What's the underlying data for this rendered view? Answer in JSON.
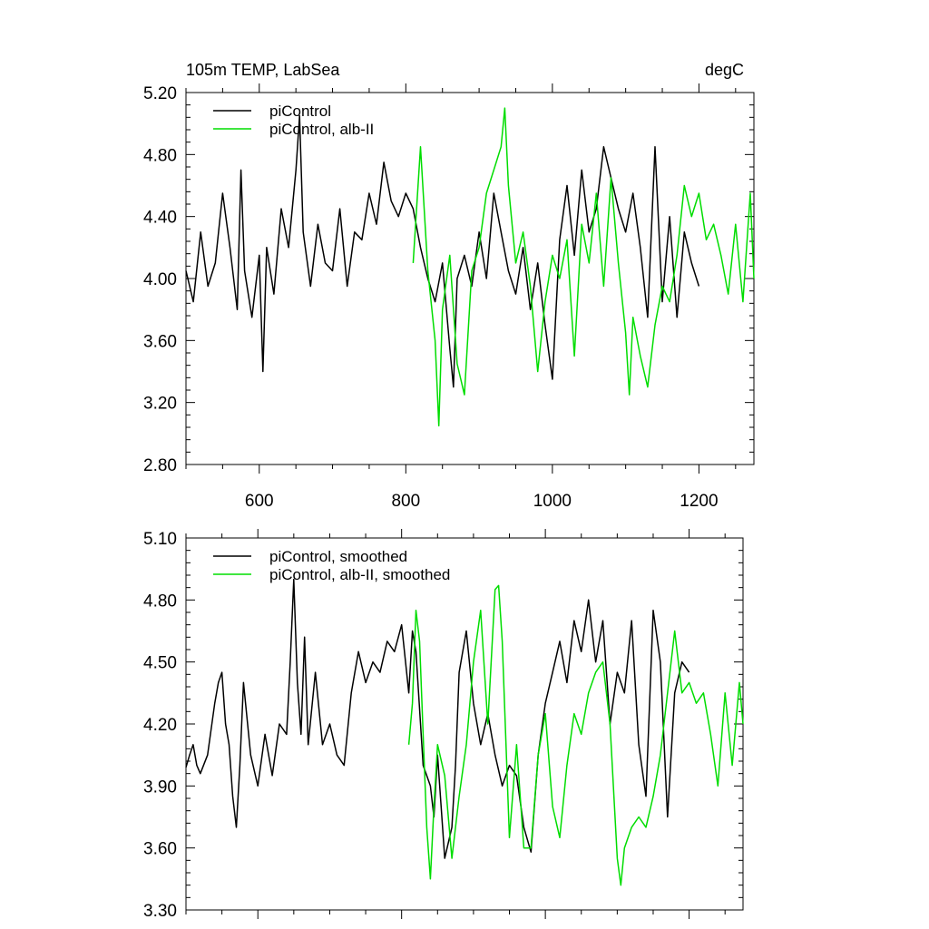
{
  "chart_data": [
    {
      "type": "line",
      "title": "105m TEMP, LabSea",
      "units": "degC",
      "xlim": [
        500,
        1275
      ],
      "ylim": [
        2.8,
        5.2
      ],
      "xticks": [
        600,
        800,
        1000,
        1200
      ],
      "yticks": [
        2.8,
        3.2,
        3.6,
        4.0,
        4.4,
        4.8,
        5.2
      ],
      "ytick_labels": [
        "2.80",
        "3.20",
        "3.60",
        "4.00",
        "4.40",
        "4.80",
        "5.20"
      ],
      "xtick_labels": [
        "600",
        "800",
        "1000",
        "1200"
      ],
      "legend_position": "top-left",
      "series": [
        {
          "name": "piControl",
          "color": "#000000",
          "x": [
            500,
            510,
            520,
            530,
            540,
            550,
            560,
            570,
            575,
            580,
            590,
            600,
            605,
            610,
            620,
            630,
            640,
            650,
            655,
            660,
            670,
            680,
            690,
            700,
            710,
            720,
            730,
            740,
            750,
            760,
            770,
            780,
            790,
            800,
            810,
            820,
            830,
            840,
            850,
            860,
            865,
            870,
            880,
            890,
            900,
            910,
            920,
            930,
            940,
            950,
            960,
            970,
            980,
            990,
            1000,
            1010,
            1020,
            1030,
            1040,
            1050,
            1060,
            1070,
            1080,
            1090,
            1100,
            1110,
            1120,
            1130,
            1140,
            1150,
            1160,
            1170,
            1180,
            1190,
            1200
          ],
          "y": [
            4.05,
            3.85,
            4.3,
            3.95,
            4.1,
            4.55,
            4.2,
            3.8,
            4.7,
            4.05,
            3.75,
            4.15,
            3.4,
            4.2,
            3.9,
            4.45,
            4.2,
            4.7,
            5.05,
            4.3,
            3.95,
            4.35,
            4.1,
            4.05,
            4.45,
            3.95,
            4.3,
            4.25,
            4.55,
            4.35,
            4.75,
            4.5,
            4.4,
            4.55,
            4.45,
            4.2,
            4.0,
            3.85,
            4.1,
            3.55,
            3.3,
            4.0,
            4.15,
            3.95,
            4.3,
            4.0,
            4.55,
            4.3,
            4.05,
            3.9,
            4.2,
            3.8,
            4.1,
            3.7,
            3.35,
            4.25,
            4.6,
            4.15,
            4.7,
            4.3,
            4.45,
            4.85,
            4.65,
            4.45,
            4.3,
            4.55,
            4.2,
            3.75,
            4.85,
            3.85,
            4.4,
            3.75,
            4.3,
            4.1,
            3.95
          ]
        },
        {
          "name": "piControl, alb-II",
          "color": "#00dd00",
          "x": [
            810,
            820,
            830,
            840,
            845,
            850,
            860,
            870,
            880,
            890,
            900,
            910,
            920,
            930,
            935,
            940,
            950,
            960,
            970,
            980,
            990,
            1000,
            1010,
            1020,
            1030,
            1040,
            1050,
            1060,
            1070,
            1080,
            1090,
            1100,
            1105,
            1110,
            1120,
            1130,
            1140,
            1150,
            1160,
            1170,
            1180,
            1190,
            1200,
            1210,
            1220,
            1230,
            1240,
            1250,
            1260,
            1270,
            1275
          ],
          "y": [
            4.1,
            4.85,
            4.05,
            3.6,
            3.05,
            3.8,
            4.15,
            3.45,
            3.25,
            4.05,
            4.2,
            4.55,
            4.7,
            4.85,
            5.1,
            4.6,
            4.1,
            4.3,
            3.95,
            3.4,
            3.85,
            4.15,
            4.0,
            4.25,
            3.5,
            4.35,
            4.1,
            4.55,
            3.95,
            4.65,
            4.1,
            3.65,
            3.25,
            3.75,
            3.5,
            3.3,
            3.7,
            3.95,
            3.85,
            4.15,
            4.6,
            4.4,
            4.55,
            4.25,
            4.35,
            4.15,
            3.9,
            4.35,
            3.85,
            4.55,
            4.0
          ]
        }
      ]
    },
    {
      "type": "line",
      "xlim": [
        500,
        1275
      ],
      "ylim": [
        3.3,
        5.1
      ],
      "xticks": [
        600,
        800,
        1000,
        1200
      ],
      "yticks": [
        3.3,
        3.6,
        3.9,
        4.2,
        4.5,
        4.8,
        5.1
      ],
      "ytick_labels": [
        "3.30",
        "3.60",
        "3.90",
        "4.20",
        "4.50",
        "4.80",
        "5.10"
      ],
      "legend_position": "top-left",
      "series": [
        {
          "name": "piControl, smoothed",
          "color": "#000000",
          "x": [
            500,
            505,
            510,
            515,
            520,
            530,
            540,
            545,
            550,
            555,
            560,
            565,
            570,
            575,
            580,
            590,
            600,
            610,
            620,
            630,
            640,
            645,
            650,
            655,
            660,
            665,
            670,
            680,
            690,
            700,
            710,
            720,
            730,
            740,
            750,
            760,
            770,
            780,
            790,
            800,
            810,
            815,
            820,
            830,
            840,
            845,
            850,
            860,
            870,
            875,
            880,
            890,
            900,
            910,
            920,
            930,
            940,
            950,
            960,
            970,
            980,
            990,
            1000,
            1010,
            1020,
            1030,
            1040,
            1050,
            1060,
            1070,
            1080,
            1090,
            1100,
            1110,
            1120,
            1130,
            1140,
            1150,
            1160,
            1170,
            1180,
            1190,
            1200
          ],
          "y": [
            3.99,
            4.05,
            4.1,
            4.0,
            3.96,
            4.05,
            4.3,
            4.4,
            4.45,
            4.2,
            4.1,
            3.85,
            3.7,
            4.0,
            4.4,
            4.05,
            3.9,
            4.15,
            3.95,
            4.2,
            4.15,
            4.5,
            4.9,
            4.4,
            4.15,
            4.62,
            4.1,
            4.45,
            4.1,
            4.2,
            4.05,
            4.0,
            4.35,
            4.55,
            4.4,
            4.5,
            4.45,
            4.6,
            4.55,
            4.68,
            4.35,
            4.65,
            4.55,
            4.0,
            3.9,
            3.75,
            4.05,
            3.55,
            3.7,
            4.0,
            4.45,
            4.65,
            4.3,
            4.1,
            4.25,
            4.05,
            3.9,
            4.0,
            3.95,
            3.7,
            3.58,
            4.05,
            4.3,
            4.45,
            4.6,
            4.4,
            4.7,
            4.55,
            4.8,
            4.5,
            4.7,
            4.2,
            4.45,
            4.35,
            4.7,
            4.1,
            3.85,
            4.75,
            4.5,
            3.75,
            4.35,
            4.5,
            4.45
          ]
        },
        {
          "name": "piControl, alb-II, smoothed",
          "color": "#00dd00",
          "x": [
            810,
            815,
            820,
            825,
            830,
            835,
            840,
            845,
            850,
            860,
            870,
            880,
            890,
            900,
            910,
            920,
            930,
            935,
            940,
            950,
            960,
            970,
            980,
            990,
            1000,
            1010,
            1020,
            1030,
            1040,
            1050,
            1060,
            1070,
            1080,
            1090,
            1100,
            1105,
            1110,
            1120,
            1130,
            1140,
            1150,
            1160,
            1170,
            1180,
            1190,
            1200,
            1210,
            1220,
            1230,
            1240,
            1250,
            1260,
            1270,
            1275
          ],
          "y": [
            4.1,
            4.3,
            4.75,
            4.6,
            4.15,
            3.7,
            3.45,
            3.8,
            4.1,
            3.95,
            3.55,
            3.85,
            4.1,
            4.5,
            4.75,
            4.2,
            4.85,
            4.87,
            4.6,
            3.65,
            4.1,
            3.6,
            3.6,
            4.05,
            4.25,
            3.8,
            3.65,
            4.0,
            4.25,
            4.15,
            4.35,
            4.45,
            4.5,
            4.2,
            3.55,
            3.42,
            3.6,
            3.7,
            3.75,
            3.7,
            3.85,
            4.05,
            4.35,
            4.65,
            4.35,
            4.4,
            4.3,
            4.35,
            4.15,
            3.9,
            4.35,
            4.0,
            4.4,
            4.2
          ]
        }
      ]
    }
  ]
}
